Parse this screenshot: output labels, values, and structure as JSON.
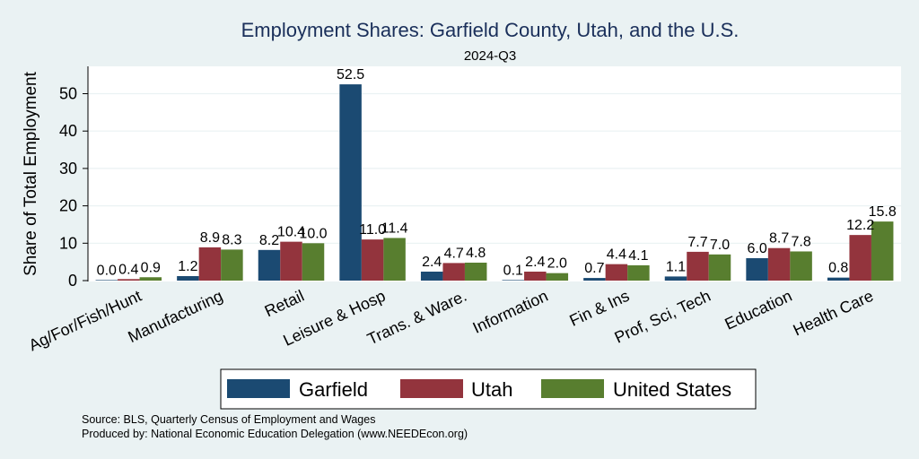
{
  "chart_data": {
    "type": "bar",
    "title": "Employment Shares: Garfield County, Utah, and the U.S.",
    "subtitle": "2024-Q3",
    "ylabel": "Share of Total Employment",
    "xlabel": "",
    "ylim": [
      0,
      57
    ],
    "yticks": [
      0,
      10,
      20,
      30,
      40,
      50
    ],
    "grid": true,
    "legend_position": "bottom",
    "categories": [
      "Ag/For/Fish/Hunt",
      "Manufacturing",
      "Retail",
      "Leisure & Hosp",
      "Trans. & Ware.",
      "Information",
      "Fin & Ins",
      "Prof, Sci, Tech",
      "Education",
      "Health Care"
    ],
    "series": [
      {
        "name": "Garfield",
        "color": "#1b4a72",
        "values": [
          0.0,
          1.2,
          8.2,
          52.5,
          2.4,
          0.1,
          0.7,
          1.1,
          6.0,
          0.8
        ],
        "labels": [
          "0.0",
          "1.2",
          "8.2",
          "52.5",
          "2.4",
          "0.1",
          "0.7",
          "1.1",
          "6.0",
          "0.8"
        ]
      },
      {
        "name": "Utah",
        "color": "#93343d",
        "values": [
          0.4,
          8.9,
          10.4,
          11.0,
          4.7,
          2.4,
          4.4,
          7.7,
          8.7,
          12.2
        ],
        "labels": [
          "0.4",
          "8.9",
          "10.4",
          "11.0",
          "4.7",
          "2.4",
          "4.4",
          "7.7",
          "8.7",
          "12.2"
        ]
      },
      {
        "name": "United States",
        "color": "#587e2f",
        "values": [
          0.9,
          8.3,
          10.0,
          11.4,
          4.8,
          2.0,
          4.1,
          7.0,
          7.8,
          15.8
        ],
        "labels": [
          "0.9",
          "8.3",
          "10.0",
          "11.4",
          "4.8",
          "2.0",
          "4.1",
          "7.0",
          "7.8",
          "15.8"
        ]
      }
    ]
  },
  "footer": {
    "source": "Source: BLS, Quarterly Census of Employment and Wages",
    "produced": "Produced by: National Economic Education Delegation (www.NEEDEcon.org)"
  }
}
